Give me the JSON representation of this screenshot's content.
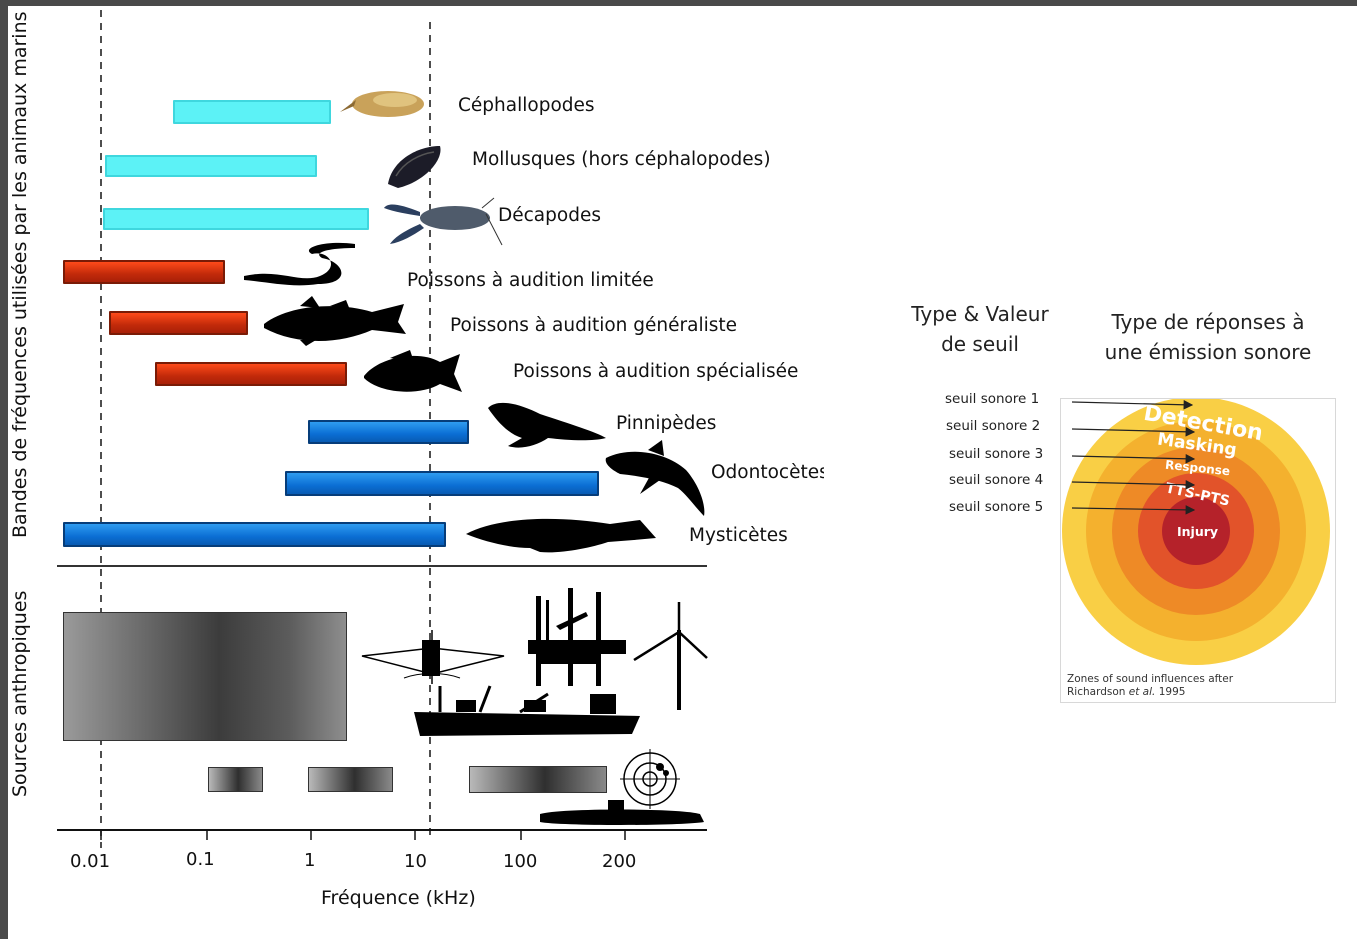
{
  "y_label_top": "Bandes de fréquences utilisées par les animaux marins",
  "y_label_bottom": "Sources anthropiques",
  "x_axis": {
    "title": "Fréquence (kHz)",
    "ticks": [
      "0.01",
      "0.1",
      "1",
      "10",
      "100",
      "200"
    ]
  },
  "animals": [
    {
      "label": "Céphallopodes",
      "color_group": "invertebrate"
    },
    {
      "label": "Mollusques (hors céphalopodes)",
      "color_group": "invertebrate"
    },
    {
      "label": "Décapodes",
      "color_group": "invertebrate"
    },
    {
      "label": "Poissons à audition limitée",
      "color_group": "fish"
    },
    {
      "label": "Poissons à audition généraliste",
      "color_group": "fish"
    },
    {
      "label": "Poissons à audition spécialisée",
      "color_group": "fish"
    },
    {
      "label": "Pinnipèdes",
      "color_group": "mammal"
    },
    {
      "label": "Odontocètes",
      "color_group": "mammal"
    },
    {
      "label": "Mysticètes",
      "color_group": "mammal"
    }
  ],
  "colors": {
    "invertebrate": "#5cf2f6",
    "fish": "#d8300f",
    "mammal": "#0b6ed4",
    "frame": "#4a4a4a"
  },
  "right_panel": {
    "header_left": [
      "Type & Valeur",
      "de seuil"
    ],
    "header_right": [
      "Type de réponses à",
      "une émission sonore"
    ],
    "thresholds": [
      "seuil sonore 1",
      "seuil sonore 2",
      "seuil sonore 3",
      "seuil sonore 4",
      "seuil sonore 5"
    ],
    "zones": [
      "Detection",
      "Masking",
      "Response",
      "TTS-PTS",
      "Injury"
    ],
    "caption_line1": "Zones of sound influences after",
    "caption_line2_prefix": "Richardson ",
    "caption_line2_em": "et al.",
    "caption_line2_suffix": " 1995"
  }
}
